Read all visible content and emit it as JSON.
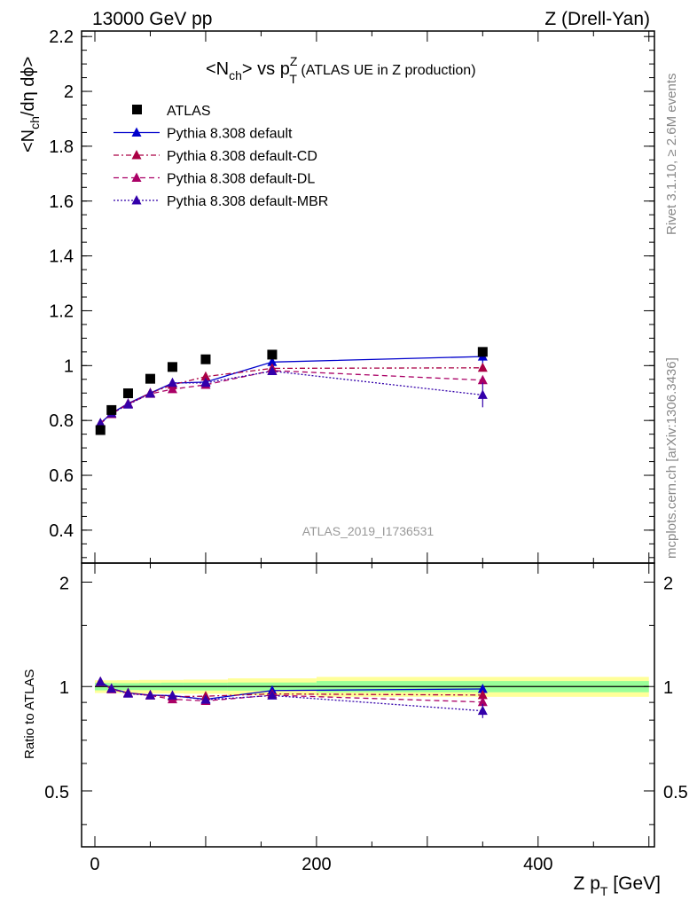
{
  "header": {
    "left": "13000 GeV pp",
    "right": "Z (Drell-Yan)"
  },
  "side_labels": {
    "rivet": "Rivet 3.1.10, ≥ 2.6M events",
    "mcplots": "mcplots.cern.ch [arXiv:1306.3436]"
  },
  "watermark": "ATLAS_2019_I1736531",
  "colors": {
    "atlas": "#000000",
    "default": "#0000cc",
    "cd": "#aa0044",
    "dl": "#aa0066",
    "mbr": "#3300aa",
    "band_yellow": "#ffff99",
    "band_green": "#99ff99"
  },
  "chart_data": [
    {
      "type": "scatter",
      "title_parts": {
        "pre": "<N",
        "sub1": "ch",
        "mid": "> vs p",
        "sup": "Z",
        "sub2": "T",
        "post": " (ATLAS UE in Z production)"
      },
      "ylabel_parts": {
        "a": "<N",
        "b": "ch",
        "c": "/dη dϕ>"
      },
      "xlim": [
        -12,
        505
      ],
      "ylim": [
        0.28,
        2.22
      ],
      "yticks": [
        0.4,
        0.6,
        0.8,
        1,
        1.2,
        1.4,
        1.6,
        1.8,
        2,
        2.2
      ],
      "yticklabels": [
        "0.4",
        "0.6",
        "0.8",
        "1",
        "1.2",
        "1.4",
        "1.6",
        "1.8",
        "2",
        "2.2"
      ],
      "legend_placement": "top-left",
      "series": [
        {
          "name": "ATLAS",
          "style": "square",
          "color_key": "atlas",
          "x": [
            5,
            15,
            30,
            50,
            70,
            100,
            160,
            350
          ],
          "y": [
            0.765,
            0.838,
            0.899,
            0.952,
            0.995,
            1.023,
            1.04,
            1.05
          ]
        },
        {
          "name": "Pythia 8.308 default",
          "style": "solid",
          "color_key": "default",
          "x": [
            5,
            15,
            30,
            50,
            70,
            100,
            160,
            350
          ],
          "y": [
            0.79,
            0.826,
            0.862,
            0.9,
            0.936,
            0.94,
            1.013,
            1.033
          ],
          "err": [
            0,
            0,
            0,
            0,
            0.012,
            0,
            0.012,
            0.025
          ]
        },
        {
          "name": "Pythia 8.308 default-CD",
          "style": "dashdot",
          "color_key": "cd",
          "x": [
            5,
            15,
            30,
            50,
            70,
            100,
            160,
            350
          ],
          "y": [
            0.79,
            0.826,
            0.86,
            0.9,
            0.93,
            0.96,
            0.99,
            0.992
          ]
        },
        {
          "name": "Pythia 8.308 default-DL",
          "style": "dashed",
          "color_key": "dl",
          "x": [
            5,
            15,
            30,
            50,
            70,
            100,
            160,
            350
          ],
          "y": [
            0.788,
            0.823,
            0.86,
            0.897,
            0.914,
            0.93,
            0.982,
            0.947
          ]
        },
        {
          "name": "Pythia 8.308 default-MBR",
          "style": "dotted",
          "color_key": "mbr",
          "x": [
            5,
            15,
            30,
            50,
            70,
            100,
            160,
            350
          ],
          "y": [
            0.79,
            0.826,
            0.858,
            0.898,
            0.937,
            0.937,
            0.98,
            0.893
          ],
          "err": [
            0,
            0,
            0,
            0,
            0,
            0,
            0,
            0.045
          ]
        }
      ]
    },
    {
      "type": "scatter",
      "ylabel": "Ratio to ATLAS",
      "xlabel_parts": {
        "a": "Z p",
        "b": "T",
        "c": " [GeV]"
      },
      "xlim": [
        -12,
        505
      ],
      "xticks": [
        0,
        200,
        400
      ],
      "xticklabels": [
        "0",
        "200",
        "400"
      ],
      "ylim": [
        0.345,
        2.27
      ],
      "ylog": true,
      "yticks": [
        0.5,
        1,
        2
      ],
      "yticklabels": [
        "0.5",
        "1",
        "2"
      ],
      "bands": {
        "edges": [
          0,
          10,
          20,
          40,
          60,
          80,
          120,
          200,
          500
        ],
        "green_lo": [
          0.975,
          0.976,
          0.977,
          0.976,
          0.974,
          0.974,
          0.973,
          0.963
        ],
        "green_hi": [
          1.025,
          1.024,
          1.023,
          1.024,
          1.026,
          1.026,
          1.027,
          1.037
        ],
        "yellow_lo": [
          0.958,
          0.958,
          0.957,
          0.955,
          0.955,
          0.953,
          0.944,
          0.934
        ],
        "yellow_hi": [
          1.042,
          1.042,
          1.043,
          1.045,
          1.045,
          1.047,
          1.056,
          1.066
        ]
      },
      "series": [
        {
          "name": "Pythia 8.308 default",
          "style": "solid",
          "color_key": "default",
          "x": [
            5,
            15,
            30,
            50,
            70,
            100,
            160,
            350
          ],
          "y": [
            1.032,
            0.986,
            0.959,
            0.945,
            0.941,
            0.919,
            0.974,
            0.984
          ],
          "err": [
            0,
            0,
            0,
            0,
            0,
            0,
            0,
            0.025
          ]
        },
        {
          "name": "Pythia 8.308 default-CD",
          "style": "dashdot",
          "color_key": "cd",
          "x": [
            5,
            15,
            30,
            50,
            70,
            100,
            160,
            350
          ],
          "y": [
            1.032,
            0.986,
            0.957,
            0.945,
            0.935,
            0.938,
            0.952,
            0.945
          ]
        },
        {
          "name": "Pythia 8.308 default-DL",
          "style": "dashed",
          "color_key": "dl",
          "x": [
            5,
            15,
            30,
            50,
            70,
            100,
            160,
            350
          ],
          "y": [
            1.03,
            0.982,
            0.957,
            0.942,
            0.919,
            0.909,
            0.944,
            0.902
          ]
        },
        {
          "name": "Pythia 8.308 default-MBR",
          "style": "dotted",
          "color_key": "mbr",
          "x": [
            5,
            15,
            30,
            50,
            70,
            100,
            160,
            350
          ],
          "y": [
            1.032,
            0.986,
            0.954,
            0.943,
            0.942,
            0.916,
            0.942,
            0.851
          ],
          "err": [
            0,
            0,
            0,
            0,
            0,
            0,
            0,
            0.04
          ]
        }
      ]
    }
  ]
}
